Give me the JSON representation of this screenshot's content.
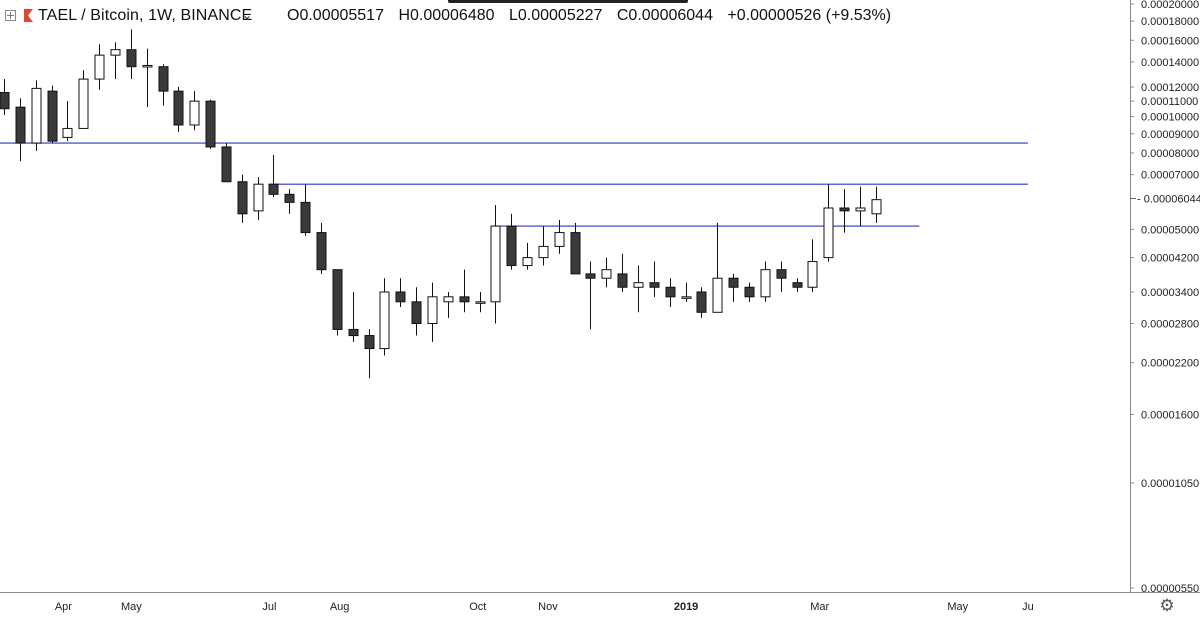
{
  "header": {
    "symbol_label": "TAEL / Bitcoin, 1W, BINANCE",
    "open": "O0.00005517",
    "high": "H0.00006480",
    "low": "L0.00005227",
    "close": "C0.00006044",
    "change": "+0.00000526 (+9.53%)"
  },
  "icons": {
    "expand": "plus-square-icon",
    "flag": "flag-icon",
    "chevron": "chevron-down-icon",
    "settings": "gear-icon"
  },
  "colors": {
    "up": "#ffffff",
    "down": "#3a3a3a",
    "wick": "#111111",
    "hline": "#2a34c8",
    "axis": "#222222"
  },
  "chart_data": {
    "type": "candlestick",
    "title": "TAEL / Bitcoin, 1W, BINANCE",
    "y_scale": "log",
    "ylim": [
      5.5e-06,
      0.0002
    ],
    "y_ticks": [
      "0.00020000",
      "0.00018000",
      "0.00016000",
      "0.00014000",
      "0.00012000",
      "0.00011000",
      "0.00010000",
      "0.00009000",
      "0.00008000",
      "0.00007000",
      "0.00006044",
      "0.00005000",
      "0.00004200",
      "0.00003400",
      "0.00002800",
      "0.00002200",
      "0.00001600",
      "0.00001050",
      "0.00000550"
    ],
    "y_tick_values": [
      0.0002,
      0.00018,
      0.00016,
      0.00014,
      0.00012,
      0.00011,
      0.0001,
      9e-05,
      8e-05,
      7e-05,
      6.044e-05,
      5e-05,
      4.2e-05,
      3.4e-05,
      2.8e-05,
      2.2e-05,
      1.6e-05,
      1.05e-05,
      5.5e-06
    ],
    "last_price": "0.00006044",
    "x_labels": [
      {
        "label": "Apr",
        "date": "2018-04-01"
      },
      {
        "label": "May",
        "date": "2018-05-01"
      },
      {
        "label": "Jul",
        "date": "2018-07-01"
      },
      {
        "label": "Aug",
        "date": "2018-08-01"
      },
      {
        "label": "Oct",
        "date": "2018-10-01"
      },
      {
        "label": "Nov",
        "date": "2018-11-01"
      },
      {
        "label": "2019",
        "date": "2019-01-01",
        "bold": true
      },
      {
        "label": "Mar",
        "date": "2019-03-01"
      },
      {
        "label": "May",
        "date": "2019-05-01"
      },
      {
        "label": "Ju",
        "date": "2019-06-01"
      }
    ],
    "candles": [
      {
        "date": "2018-03-04",
        "o": 0.000116,
        "h": 0.000126,
        "l": 0.000101,
        "c": 0.000105
      },
      {
        "date": "2018-03-11",
        "o": 0.000106,
        "h": 0.000112,
        "l": 7.6e-05,
        "c": 8.5e-05
      },
      {
        "date": "2018-03-18",
        "o": 8.5e-05,
        "h": 0.000125,
        "l": 8.1e-05,
        "c": 0.000119
      },
      {
        "date": "2018-03-25",
        "o": 0.000117,
        "h": 0.000121,
        "l": 8.5e-05,
        "c": 8.6e-05
      },
      {
        "date": "2018-04-01",
        "o": 8.8e-05,
        "h": 0.00011,
        "l": 8.6e-05,
        "c": 9.3e-05
      },
      {
        "date": "2018-04-08",
        "o": 9.3e-05,
        "h": 0.000133,
        "l": 9.3e-05,
        "c": 0.000126
      },
      {
        "date": "2018-04-15",
        "o": 0.000126,
        "h": 0.000156,
        "l": 0.000118,
        "c": 0.000146
      },
      {
        "date": "2018-04-22",
        "o": 0.000146,
        "h": 0.000158,
        "l": 0.000126,
        "c": 0.000151
      },
      {
        "date": "2018-04-29",
        "o": 0.000151,
        "h": 0.000171,
        "l": 0.000126,
        "c": 0.000136
      },
      {
        "date": "2018-05-06",
        "o": 0.000136,
        "h": 0.000152,
        "l": 0.000106,
        "c": 0.000137
      },
      {
        "date": "2018-05-13",
        "o": 0.000136,
        "h": 0.000138,
        "l": 0.000107,
        "c": 0.000117
      },
      {
        "date": "2018-05-20",
        "o": 0.000117,
        "h": 0.00012,
        "l": 9.1e-05,
        "c": 9.5e-05
      },
      {
        "date": "2018-05-27",
        "o": 9.5e-05,
        "h": 0.000117,
        "l": 9.2e-05,
        "c": 0.00011
      },
      {
        "date": "2018-06-03",
        "o": 0.00011,
        "h": 0.000111,
        "l": 8.2e-05,
        "c": 8.3e-05
      },
      {
        "date": "2018-06-10",
        "o": 8.3e-05,
        "h": 8.5e-05,
        "l": 6.7e-05,
        "c": 6.7e-05
      },
      {
        "date": "2018-06-17",
        "o": 6.7e-05,
        "h": 7e-05,
        "l": 5.2e-05,
        "c": 5.5e-05
      },
      {
        "date": "2018-06-24",
        "o": 5.6e-05,
        "h": 6.9e-05,
        "l": 5.3e-05,
        "c": 6.6e-05
      },
      {
        "date": "2018-07-01",
        "o": 6.6e-05,
        "h": 7.9e-05,
        "l": 6.1e-05,
        "c": 6.2e-05
      },
      {
        "date": "2018-07-08",
        "o": 6.2e-05,
        "h": 6.4e-05,
        "l": 5.5e-05,
        "c": 5.9e-05
      },
      {
        "date": "2018-07-15",
        "o": 5.9e-05,
        "h": 6.6e-05,
        "l": 4.8e-05,
        "c": 4.9e-05
      },
      {
        "date": "2018-07-22",
        "o": 4.9e-05,
        "h": 5.2e-05,
        "l": 3.8e-05,
        "c": 3.9e-05
      },
      {
        "date": "2018-07-29",
        "o": 3.9e-05,
        "h": 3.9e-05,
        "l": 2.6e-05,
        "c": 2.7e-05
      },
      {
        "date": "2018-08-05",
        "o": 2.7e-05,
        "h": 3.4e-05,
        "l": 2.5e-05,
        "c": 2.6e-05
      },
      {
        "date": "2018-08-12",
        "o": 2.6e-05,
        "h": 2.7e-05,
        "l": 2e-05,
        "c": 2.4e-05
      },
      {
        "date": "2018-08-19",
        "o": 2.4e-05,
        "h": 3.7e-05,
        "l": 2.3e-05,
        "c": 3.4e-05
      },
      {
        "date": "2018-08-26",
        "o": 3.4e-05,
        "h": 3.7e-05,
        "l": 3.1e-05,
        "c": 3.2e-05
      },
      {
        "date": "2018-09-02",
        "o": 3.2e-05,
        "h": 3.5e-05,
        "l": 2.6e-05,
        "c": 2.8e-05
      },
      {
        "date": "2018-09-09",
        "o": 2.8e-05,
        "h": 3.6e-05,
        "l": 2.5e-05,
        "c": 3.3e-05
      },
      {
        "date": "2018-09-16",
        "o": 3.2e-05,
        "h": 3.4e-05,
        "l": 2.9e-05,
        "c": 3.3e-05
      },
      {
        "date": "2018-09-23",
        "o": 3.3e-05,
        "h": 3.9e-05,
        "l": 3e-05,
        "c": 3.2e-05
      },
      {
        "date": "2018-09-30",
        "o": 3.2e-05,
        "h": 3.4e-05,
        "l": 3e-05,
        "c": 3.2e-05
      },
      {
        "date": "2018-10-07",
        "o": 3.2e-05,
        "h": 5.8e-05,
        "l": 2.8e-05,
        "c": 5.1e-05
      },
      {
        "date": "2018-10-14",
        "o": 5.1e-05,
        "h": 5.5e-05,
        "l": 3.9e-05,
        "c": 4e-05
      },
      {
        "date": "2018-10-21",
        "o": 4e-05,
        "h": 4.6e-05,
        "l": 3.9e-05,
        "c": 4.2e-05
      },
      {
        "date": "2018-10-28",
        "o": 4.2e-05,
        "h": 5.1e-05,
        "l": 4e-05,
        "c": 4.5e-05
      },
      {
        "date": "2018-11-04",
        "o": 4.5e-05,
        "h": 5.3e-05,
        "l": 4.3e-05,
        "c": 4.9e-05
      },
      {
        "date": "2018-11-11",
        "o": 4.9e-05,
        "h": 5.2e-05,
        "l": 3.8e-05,
        "c": 3.8e-05
      },
      {
        "date": "2018-11-18",
        "o": 3.8e-05,
        "h": 4.1e-05,
        "l": 2.7e-05,
        "c": 3.7e-05
      },
      {
        "date": "2018-11-25",
        "o": 3.7e-05,
        "h": 4.2e-05,
        "l": 3.5e-05,
        "c": 3.9e-05
      },
      {
        "date": "2018-12-02",
        "o": 3.8e-05,
        "h": 4.3e-05,
        "l": 3.4e-05,
        "c": 3.5e-05
      },
      {
        "date": "2018-12-09",
        "o": 3.5e-05,
        "h": 4e-05,
        "l": 3e-05,
        "c": 3.6e-05
      },
      {
        "date": "2018-12-16",
        "o": 3.6e-05,
        "h": 4.1e-05,
        "l": 3.3e-05,
        "c": 3.5e-05
      },
      {
        "date": "2018-12-23",
        "o": 3.5e-05,
        "h": 3.7e-05,
        "l": 3.1e-05,
        "c": 3.3e-05
      },
      {
        "date": "2018-12-30",
        "o": 3.3e-05,
        "h": 3.6e-05,
        "l": 3.2e-05,
        "c": 3.3e-05
      },
      {
        "date": "2019-01-06",
        "o": 3.4e-05,
        "h": 3.5e-05,
        "l": 2.9e-05,
        "c": 3e-05
      },
      {
        "date": "2019-01-13",
        "o": 3e-05,
        "h": 5.2e-05,
        "l": 3e-05,
        "c": 3.7e-05
      },
      {
        "date": "2019-01-20",
        "o": 3.7e-05,
        "h": 3.8e-05,
        "l": 3.2e-05,
        "c": 3.5e-05
      },
      {
        "date": "2019-01-27",
        "o": 3.5e-05,
        "h": 3.6e-05,
        "l": 3.2e-05,
        "c": 3.3e-05
      },
      {
        "date": "2019-02-03",
        "o": 3.3e-05,
        "h": 4.1e-05,
        "l": 3.2e-05,
        "c": 3.9e-05
      },
      {
        "date": "2019-02-10",
        "o": 3.9e-05,
        "h": 4.1e-05,
        "l": 3.4e-05,
        "c": 3.7e-05
      },
      {
        "date": "2019-02-17",
        "o": 3.6e-05,
        "h": 3.7e-05,
        "l": 3.4e-05,
        "c": 3.5e-05
      },
      {
        "date": "2019-02-24",
        "o": 3.5e-05,
        "h": 4.7e-05,
        "l": 3.4e-05,
        "c": 4.1e-05
      },
      {
        "date": "2019-03-03",
        "o": 4.2e-05,
        "h": 6.6e-05,
        "l": 4.1e-05,
        "c": 5.7e-05
      },
      {
        "date": "2019-03-10",
        "o": 5.7e-05,
        "h": 6.4e-05,
        "l": 4.9e-05,
        "c": 5.6e-05
      },
      {
        "date": "2019-03-17",
        "o": 5.6e-05,
        "h": 6.5e-05,
        "l": 5.1e-05,
        "c": 5.7e-05
      },
      {
        "date": "2019-03-24",
        "o": 5.5e-05,
        "h": 6.5e-05,
        "l": 5.2e-05,
        "c": 6e-05
      }
    ],
    "horizontal_lines": [
      {
        "value": 8.5e-05,
        "from": "2018-03-04",
        "to": "2019-06-01"
      },
      {
        "value": 6.6e-05,
        "from": "2018-07-01",
        "to": "2019-06-01"
      },
      {
        "value": 5.1e-05,
        "from": "2018-10-07",
        "to": "2019-04-14"
      }
    ]
  }
}
